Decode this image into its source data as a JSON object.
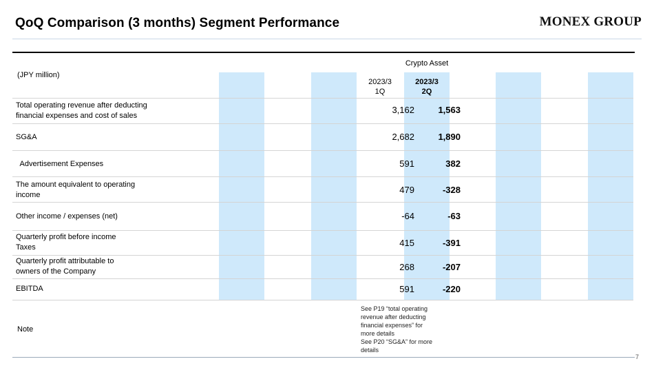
{
  "header": {
    "title": "QoQ Comparison (3 months) Segment Performance",
    "logo": "MONEX GROUP"
  },
  "table": {
    "group_label": "Crypto Asset",
    "units_label": "(JPY million)",
    "columns": [
      {
        "line1": "2023/3",
        "line2": "1Q"
      },
      {
        "line1": "2023/3",
        "line2": "2Q"
      }
    ],
    "rows": [
      {
        "label_lines": [
          "Total operating revenue after deducting",
          "financial expenses and cost of sales"
        ],
        "v1": "3,162",
        "v2": "1,563"
      },
      {
        "label_lines": [
          "SG&A"
        ],
        "v1": "2,682",
        "v2": "1,890"
      },
      {
        "label_lines": [
          "  Advertisement Expenses"
        ],
        "v1": "591",
        "v2": "382"
      },
      {
        "label_lines": [
          "The amount equivalent to operating",
          "income"
        ],
        "v1": "479",
        "v2": "-328"
      },
      {
        "label_lines": [
          "Other income / expenses (net)"
        ],
        "v1": "-64",
        "v2": "-63"
      },
      {
        "label_lines": [
          "Quarterly profit before income",
          "Taxes"
        ],
        "v1": "415",
        "v2": "-391"
      },
      {
        "label_lines": [
          "Quarterly profit attributable to",
          "owners of the Company"
        ],
        "v1": "268",
        "v2": "-207"
      },
      {
        "label_lines": [
          "EBITDA"
        ],
        "v1": "591",
        "v2": "-220"
      }
    ],
    "note_label": "Note",
    "note_lines": [
      "See P19 “total operating",
      "revenue after deducting",
      "financial expenses” for",
      "more details",
      "See P20 “SG&A” for more",
      "details"
    ]
  },
  "footer": {
    "page_number": "7"
  },
  "colors": {
    "band": "#cfe9fb",
    "rule": "#c9d7e6"
  }
}
